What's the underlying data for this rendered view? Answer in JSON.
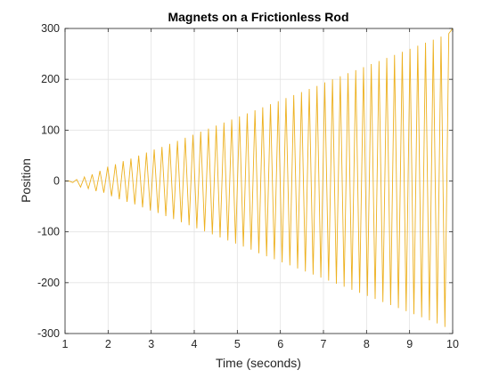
{
  "chart_data": {
    "type": "line",
    "title": "Magnets on a Frictionless Rod",
    "xlabel": "Time (seconds)",
    "ylabel": "Position",
    "xlim": [
      1,
      10
    ],
    "ylim": [
      -300,
      300
    ],
    "xticks": [
      "1",
      "2",
      "3",
      "4",
      "5",
      "6",
      "7",
      "8",
      "9",
      "10"
    ],
    "yticks": [
      "-300",
      "-200",
      "-100",
      "0",
      "100",
      "200",
      "300"
    ],
    "grid": true,
    "legend": "none",
    "series": [
      {
        "color": "#EDB120",
        "shape": "oscillation with linearly growing amplitude",
        "x": [
          1.0,
          1.09,
          1.18,
          1.27,
          1.36,
          1.45,
          1.54,
          1.63,
          1.72,
          1.81,
          1.9,
          1.99,
          2.08,
          2.17,
          2.26,
          2.35,
          2.44,
          2.53,
          2.62,
          2.71,
          2.8,
          2.89,
          2.98,
          3.07,
          3.16,
          3.25,
          3.34,
          3.43,
          3.52,
          3.61,
          3.7,
          3.79,
          3.88,
          3.97,
          4.06,
          4.15,
          4.24,
          4.33,
          4.42,
          4.51,
          4.6,
          4.69,
          4.78,
          4.87,
          4.96,
          5.05,
          5.14,
          5.23,
          5.32,
          5.41,
          5.5,
          5.59,
          5.68,
          5.77,
          5.86,
          5.95,
          6.04,
          6.13,
          6.22,
          6.31,
          6.4,
          6.49,
          6.58,
          6.67,
          6.76,
          6.85,
          6.94,
          7.03,
          7.12,
          7.21,
          7.3,
          7.39,
          7.48,
          7.57,
          7.66,
          7.75,
          7.84,
          7.93,
          8.02,
          8.11,
          8.2,
          8.29,
          8.38,
          8.47,
          8.56,
          8.65,
          8.74,
          8.83,
          8.92,
          9.01,
          9.1,
          9.19,
          9.28,
          9.37,
          9.46,
          9.55,
          9.64,
          9.73,
          9.82,
          9.91,
          10.0
        ],
        "y": [
          0,
          0,
          -3,
          3,
          -12,
          8,
          -15,
          13,
          -20,
          20,
          -23,
          28,
          -30,
          33,
          -36,
          39,
          -41,
          44,
          -46,
          50,
          -52,
          56,
          -58,
          62,
          -63,
          67,
          -69,
          73,
          -75,
          79,
          -81,
          85,
          -87,
          91,
          -93,
          97,
          -99,
          103,
          -105,
          109,
          -111,
          115,
          -117,
          121,
          -123,
          127,
          -129,
          133,
          -135,
          139,
          -142,
          145,
          -148,
          151,
          -154,
          157,
          -160,
          163,
          -166,
          169,
          -172,
          175,
          -178,
          181,
          -184,
          187,
          -190,
          194,
          -196,
          200,
          -202,
          206,
          -208,
          212,
          -214,
          218,
          -220,
          224,
          -226,
          230,
          -232,
          236,
          -238,
          242,
          -244,
          248,
          -250,
          254,
          -256,
          260,
          -262,
          266,
          -268,
          272,
          -274,
          278,
          -280,
          284,
          -287,
          290,
          300
        ]
      }
    ]
  }
}
